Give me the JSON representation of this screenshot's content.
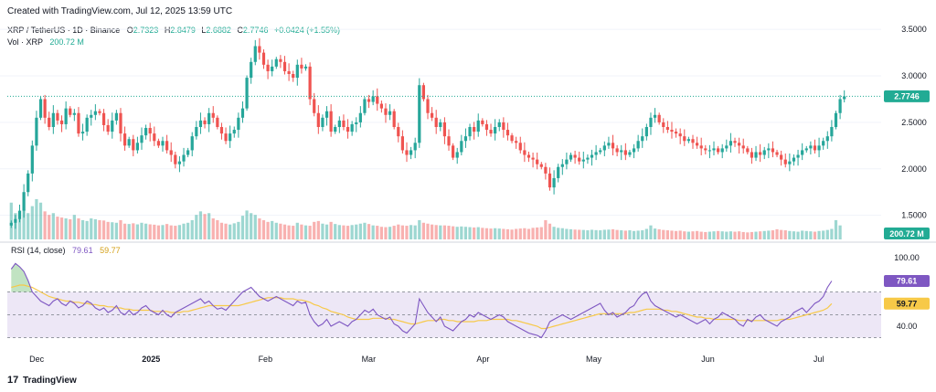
{
  "header": {
    "created": "Created with TradingView.com, Jul 12, 2025 13:59 UTC",
    "symbol": "XRP / TetherUS · 1D · Binance",
    "o_label": "O",
    "o_value": "2.7323",
    "h_label": "H",
    "h_value": "2.8479",
    "l_label": "L",
    "l_value": "2.6882",
    "c_label": "C",
    "c_value": "2.7746",
    "change": "+0.0424 (+1.55%)",
    "vol_label": "Vol · XRP",
    "vol_value": "200.72 M"
  },
  "rsi_legend": {
    "label": "RSI (14, close)",
    "rsi_value": "79.61",
    "ma_value": "59.77"
  },
  "footer": {
    "brand": "TradingView"
  },
  "colors": {
    "up": "#26a69a",
    "down": "#ef5350",
    "rsi": "#7e57c2",
    "rsi_ma": "#f7c948",
    "band_fill": "#ede7f6",
    "last_price": "#22ab94"
  },
  "chart_data": [
    {
      "type": "candlestick",
      "price_axis": {
        "ticks": [
          "3.5000",
          "3.0000",
          "2.5000",
          "2.0000",
          "1.5000"
        ],
        "ylim": [
          1.3,
          3.6
        ],
        "last_price_label": "2.7746"
      },
      "volume_label": "200.72 M",
      "time_axis": [
        "Dec",
        "2025",
        "Feb",
        "Mar",
        "Apr",
        "May",
        "Jun",
        "Jul"
      ],
      "date_range": [
        "2024-11-27",
        "2025-07-12"
      ],
      "closes": [
        1.42,
        1.46,
        1.55,
        1.75,
        1.95,
        2.25,
        2.55,
        2.75,
        2.55,
        2.45,
        2.6,
        2.52,
        2.48,
        2.65,
        2.58,
        2.6,
        2.38,
        2.4,
        2.55,
        2.58,
        2.62,
        2.6,
        2.47,
        2.4,
        2.52,
        2.6,
        2.38,
        2.25,
        2.32,
        2.2,
        2.28,
        2.36,
        2.44,
        2.38,
        2.3,
        2.25,
        2.3,
        2.2,
        2.15,
        2.05,
        2.08,
        2.15,
        2.2,
        2.35,
        2.45,
        2.52,
        2.48,
        2.6,
        2.55,
        2.45,
        2.38,
        2.3,
        2.38,
        2.42,
        2.55,
        2.65,
        2.98,
        3.15,
        3.32,
        3.25,
        3.12,
        3.05,
        3.1,
        3.18,
        3.15,
        3.05,
        3.02,
        2.98,
        3.12,
        3.08,
        3.1,
        2.75,
        2.6,
        2.45,
        2.55,
        2.62,
        2.4,
        2.45,
        2.52,
        2.45,
        2.4,
        2.48,
        2.5,
        2.6,
        2.75,
        2.72,
        2.78,
        2.7,
        2.65,
        2.58,
        2.62,
        2.45,
        2.35,
        2.2,
        2.15,
        2.2,
        2.28,
        2.9,
        2.75,
        2.6,
        2.55,
        2.45,
        2.5,
        2.35,
        2.25,
        2.12,
        2.18,
        2.3,
        2.35,
        2.45,
        2.4,
        2.52,
        2.48,
        2.42,
        2.38,
        2.45,
        2.5,
        2.42,
        2.36,
        2.3,
        2.28,
        2.2,
        2.15,
        2.12,
        2.1,
        2.05,
        2.02,
        1.95,
        1.8,
        1.9,
        2.02,
        2.05,
        2.1,
        2.15,
        2.12,
        2.08,
        2.1,
        2.12,
        2.15,
        2.18,
        2.2,
        2.25,
        2.28,
        2.22,
        2.18,
        2.2,
        2.15,
        2.18,
        2.22,
        2.3,
        2.35,
        2.45,
        2.55,
        2.58,
        2.5,
        2.45,
        2.42,
        2.4,
        2.38,
        2.35,
        2.3,
        2.32,
        2.28,
        2.25,
        2.22,
        2.2,
        2.2,
        2.22,
        2.18,
        2.22,
        2.25,
        2.3,
        2.28,
        2.25,
        2.22,
        2.18,
        2.12,
        2.18,
        2.15,
        2.2,
        2.22,
        2.18,
        2.15,
        2.1,
        2.05,
        2.08,
        2.12,
        2.15,
        2.2,
        2.22,
        2.25,
        2.2,
        2.25,
        2.3,
        2.35,
        2.45,
        2.6,
        2.75,
        2.78
      ],
      "volumes": [
        210,
        150,
        120,
        170,
        150,
        190,
        230,
        210,
        160,
        140,
        150,
        130,
        125,
        120,
        115,
        140,
        120,
        110,
        105,
        120,
        115,
        110,
        108,
        100,
        98,
        95,
        110,
        90,
        88,
        92,
        86,
        95,
        90,
        86,
        84,
        80,
        82,
        88,
        80,
        78,
        82,
        90,
        95,
        110,
        140,
        160,
        145,
        150,
        120,
        110,
        95,
        90,
        85,
        92,
        100,
        135,
        165,
        150,
        140,
        120,
        110,
        100,
        105,
        95,
        90,
        85,
        80,
        78,
        95,
        85,
        80,
        78,
        100,
        105,
        90,
        85,
        100,
        88,
        82,
        80,
        78,
        82,
        85,
        90,
        95,
        88,
        80,
        78,
        72,
        70,
        72,
        78,
        85,
        80,
        78,
        82,
        80,
        110,
        95,
        90,
        85,
        82,
        80,
        80,
        78,
        75,
        72,
        74,
        72,
        70,
        68,
        70,
        66,
        64,
        62,
        64,
        62,
        60,
        58,
        56,
        60,
        62,
        64,
        60,
        66,
        68,
        70,
        110,
        90,
        72,
        66,
        64,
        60,
        58,
        56,
        55,
        54,
        52,
        55,
        53,
        52,
        55,
        56,
        58,
        54,
        52,
        50,
        52,
        48,
        50,
        52,
        60,
        80,
        62,
        58,
        54,
        52,
        50,
        48,
        50,
        46,
        44,
        46,
        48,
        44,
        42,
        44,
        46,
        48,
        46,
        44,
        46,
        44,
        46,
        42,
        40,
        42,
        44,
        46,
        48,
        50,
        52,
        58,
        54,
        52,
        48,
        46,
        44,
        50,
        48,
        46,
        44,
        48,
        50,
        54,
        60,
        110,
        80
      ],
      "volume_ylim": [
        0,
        240
      ]
    },
    {
      "type": "line",
      "name": "RSI (14, close)",
      "ylim": [
        28,
        100
      ],
      "axis_ticks": [
        "100.00",
        "40.00"
      ],
      "levels": [
        70,
        50,
        30
      ],
      "rsi": [
        90,
        95,
        92,
        88,
        80,
        70,
        66,
        62,
        60,
        58,
        62,
        64,
        60,
        58,
        62,
        60,
        56,
        58,
        62,
        60,
        56,
        54,
        56,
        52,
        54,
        58,
        52,
        50,
        54,
        50,
        52,
        56,
        58,
        54,
        52,
        50,
        54,
        50,
        48,
        52,
        54,
        56,
        58,
        60,
        62,
        64,
        60,
        62,
        58,
        55,
        56,
        54,
        58,
        62,
        66,
        70,
        72,
        74,
        70,
        66,
        64,
        62,
        64,
        66,
        64,
        62,
        60,
        58,
        62,
        60,
        61,
        50,
        44,
        40,
        42,
        46,
        40,
        42,
        44,
        42,
        40,
        44,
        46,
        50,
        54,
        52,
        55,
        50,
        48,
        46,
        48,
        42,
        40,
        36,
        34,
        38,
        42,
        64,
        58,
        52,
        48,
        44,
        48,
        40,
        38,
        36,
        40,
        44,
        46,
        50,
        48,
        52,
        50,
        48,
        46,
        48,
        50,
        48,
        44,
        42,
        40,
        38,
        36,
        34,
        33,
        32,
        30,
        36,
        44,
        46,
        48,
        50,
        48,
        46,
        48,
        50,
        52,
        54,
        56,
        58,
        60,
        54,
        50,
        52,
        48,
        50,
        52,
        56,
        58,
        64,
        68,
        70,
        62,
        58,
        56,
        54,
        52,
        50,
        48,
        50,
        48,
        46,
        44,
        42,
        44,
        46,
        42,
        46,
        48,
        52,
        50,
        48,
        46,
        42,
        40,
        46,
        44,
        48,
        50,
        46,
        44,
        42,
        40,
        44,
        46,
        48,
        52,
        54,
        56,
        52,
        56,
        60,
        62,
        66,
        74,
        79.61
      ],
      "rsi_ma": [
        74,
        75,
        76,
        76,
        75,
        74,
        72,
        70,
        68,
        66,
        65,
        64,
        63,
        62,
        62,
        61,
        61,
        60,
        60,
        59,
        59,
        58,
        58,
        57,
        57,
        56,
        56,
        55,
        55,
        54,
        54,
        54,
        54,
        54,
        53,
        53,
        53,
        53,
        52,
        52,
        52,
        53,
        53,
        54,
        55,
        56,
        57,
        58,
        58,
        58,
        58,
        58,
        58,
        58,
        58,
        59,
        60,
        61,
        62,
        63,
        64,
        65,
        65,
        65,
        65,
        64,
        64,
        64,
        63,
        63,
        62,
        61,
        59,
        58,
        56,
        55,
        53,
        52,
        51,
        50,
        48,
        47,
        46,
        46,
        46,
        46,
        47,
        47,
        47,
        47,
        46,
        46,
        45,
        44,
        43,
        42,
        42,
        43,
        44,
        45,
        45,
        45,
        46,
        46,
        45,
        45,
        44,
        44,
        44,
        44,
        44,
        45,
        45,
        45,
        46,
        46,
        46,
        46,
        46,
        45,
        45,
        44,
        43,
        42,
        41,
        40,
        38,
        38,
        39,
        40,
        41,
        42,
        43,
        44,
        45,
        46,
        47,
        48,
        49,
        50,
        51,
        51,
        51,
        51,
        51,
        51,
        51,
        52,
        52,
        53,
        54,
        55,
        55,
        55,
        55,
        54,
        54,
        53,
        53,
        52,
        51,
        50,
        49,
        48,
        48,
        47,
        47,
        46,
        46,
        46,
        46,
        46,
        46,
        45,
        45,
        45,
        45,
        45,
        45,
        45,
        45,
        45,
        45,
        46,
        46,
        46,
        47,
        48,
        49,
        50,
        51,
        52,
        53,
        54,
        56,
        59.77
      ],
      "last_rsi": "79.61",
      "last_ma": "59.77"
    }
  ]
}
